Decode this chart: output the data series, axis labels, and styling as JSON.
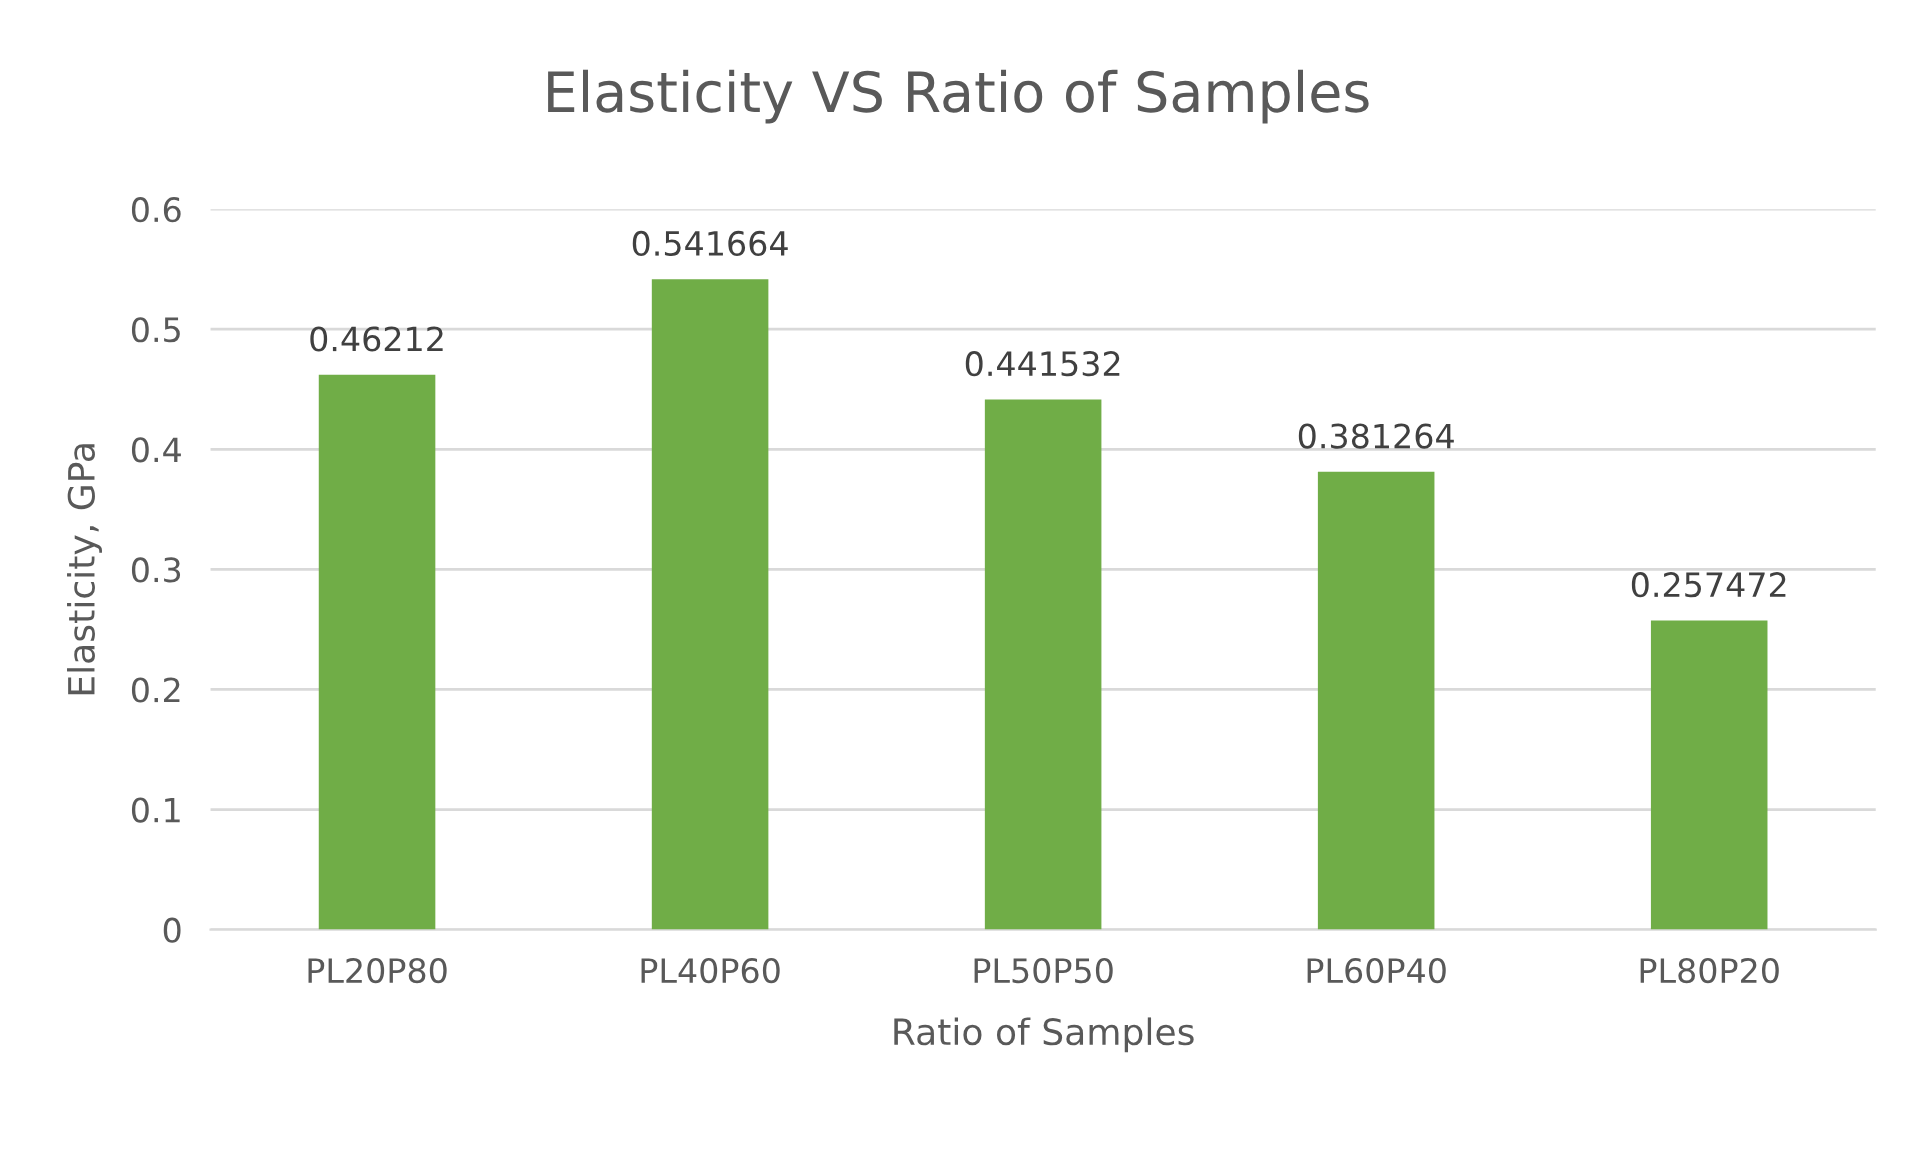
{
  "chart_data": {
    "type": "bar",
    "title": "Elasticity VS Ratio of Samples",
    "xlabel": "Ratio of Samples",
    "ylabel": "Elasticity, GPa",
    "categories": [
      "PL20P80",
      "PL40P60",
      "PL50P50",
      "PL60P40",
      "PL80P20"
    ],
    "values": [
      0.46212,
      0.541664,
      0.441532,
      0.381264,
      0.257472
    ],
    "color": "#70ad47",
    "ylim": [
      0,
      0.6
    ],
    "yticks": [
      0,
      0.1,
      0.2,
      0.3,
      0.4,
      0.5,
      0.6
    ],
    "grid": "y",
    "data_labels": true
  }
}
